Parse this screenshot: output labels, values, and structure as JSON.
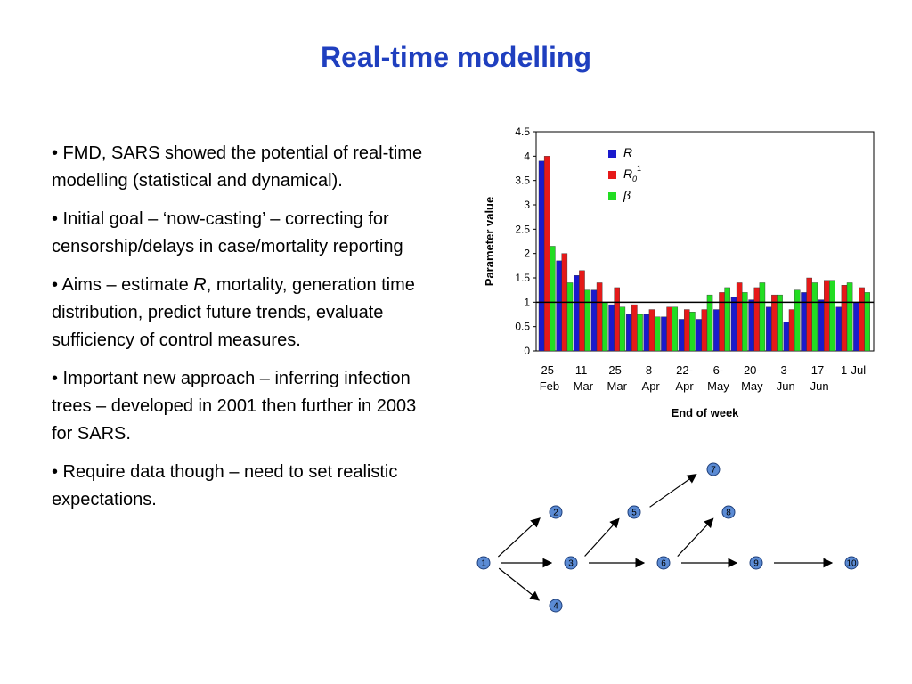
{
  "slide": {
    "title": "Real-time modelling",
    "bullets": [
      {
        "parts": [
          "• FMD, SARS showed the potential of real-time modelling (statistical and dynamical)."
        ]
      },
      {
        "parts": [
          "• Initial goal – ‘now-casting’ – correcting for censorship/delays in case/mortality reporting"
        ]
      },
      {
        "parts": [
          "• Aims – estimate ",
          "R",
          ", mortality, generation time distribution, predict future trends, evaluate sufficiency of control measures."
        ]
      },
      {
        "parts": [
          "• Important new approach – inferring infection trees – developed in 2001 then further in 2003 for SARS."
        ]
      },
      {
        "parts": [
          "• Require data though – need to set realistic expectations."
        ]
      }
    ]
  },
  "chart_data": {
    "type": "bar",
    "title": "",
    "xlabel": "End of week",
    "ylabel": "Parameter value",
    "ylim": [
      0,
      4.5
    ],
    "yticks": [
      "0",
      "0.5",
      "1",
      "1.5",
      "2",
      "2.5",
      "3",
      "3.5",
      "4",
      "4.5"
    ],
    "reference_line": 1,
    "x_tick_labels": [
      [
        "25-",
        "Feb"
      ],
      [
        "11-",
        "Mar"
      ],
      [
        "25-",
        "Mar"
      ],
      [
        "8-",
        "Apr"
      ],
      [
        "22-",
        "Apr"
      ],
      [
        "6-",
        "May"
      ],
      [
        "20-",
        "May"
      ],
      [
        "3-",
        "Jun"
      ],
      [
        "17-",
        "Jun"
      ],
      [
        "1-Jul",
        ""
      ]
    ],
    "legend_position": "top-center",
    "series": [
      {
        "name": "R",
        "label_main": "R",
        "color": "#1a1acc",
        "values": [
          3.9,
          1.85,
          1.55,
          1.25,
          0.95,
          0.75,
          0.75,
          0.7,
          0.65,
          0.65,
          0.85,
          1.1,
          1.05,
          0.9,
          0.6,
          1.2,
          1.05,
          0.9,
          1.0
        ]
      },
      {
        "name": "R01",
        "label_main": "R",
        "label_sub": "0",
        "label_sup": "1",
        "color": "#e61919",
        "values": [
          4.0,
          2.0,
          1.65,
          1.4,
          1.3,
          0.95,
          0.85,
          0.9,
          0.85,
          0.85,
          1.2,
          1.4,
          1.3,
          1.15,
          0.85,
          1.5,
          1.45,
          1.35,
          1.3
        ]
      },
      {
        "name": "β",
        "label_main": "β",
        "color": "#22dd22",
        "values": [
          2.15,
          1.4,
          1.25,
          1.0,
          0.9,
          0.75,
          0.7,
          0.9,
          0.8,
          1.15,
          1.3,
          1.2,
          1.4,
          1.15,
          1.25,
          1.4,
          1.45,
          1.4,
          1.2
        ]
      }
    ]
  },
  "tree": {
    "nodes": [
      "1",
      "2",
      "3",
      "4",
      "5",
      "6",
      "7",
      "8",
      "9",
      "10"
    ]
  },
  "colors": {
    "title": "#1f3fbf",
    "node_fill": "#5b8bd4",
    "node_stroke": "#1f3f7a"
  }
}
